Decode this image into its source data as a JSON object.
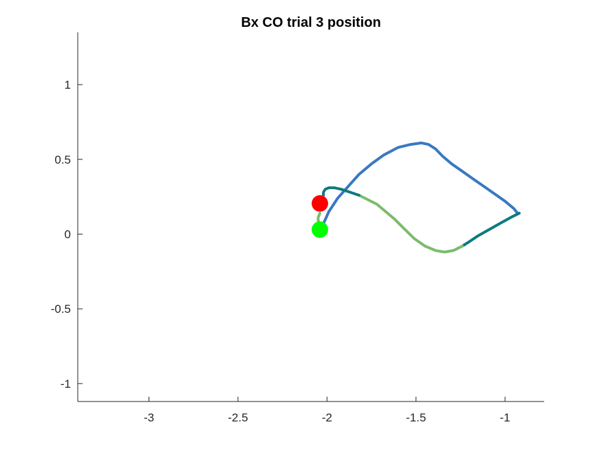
{
  "chart_data": {
    "type": "line",
    "title": "Bx  CO trial 3 position",
    "xlabel": "",
    "ylabel": "",
    "xlim": [
      -3.4,
      -0.78
    ],
    "ylim": [
      -1.12,
      1.35
    ],
    "x_ticks": [
      -3,
      -2.5,
      -2,
      -1.5,
      -1
    ],
    "x_tick_labels": [
      "-3",
      "-2.5",
      "-2",
      "-1.5",
      "-1"
    ],
    "y_ticks": [
      -1,
      -0.5,
      0,
      0.5,
      1
    ],
    "y_tick_labels": [
      "-1",
      "-0.5",
      "0",
      "0.5",
      "1"
    ],
    "grid": false,
    "legend": "none",
    "colors": {
      "outward": "#3A78C2",
      "hold": "#0E7A80",
      "return": "#7CBB6B",
      "start_marker": "#00FF00",
      "end_marker": "#FF0000"
    },
    "series": [
      {
        "color": "#3A78C2",
        "x": [
          -2.02,
          -1.99,
          -1.94,
          -1.88,
          -1.82,
          -1.75,
          -1.68,
          -1.6,
          -1.53,
          -1.47,
          -1.43,
          -1.39,
          -1.35,
          -1.3,
          -1.24,
          -1.18,
          -1.12,
          -1.06,
          -1.0,
          -0.95,
          -0.93
        ],
        "y": [
          0.07,
          0.15,
          0.24,
          0.32,
          0.4,
          0.47,
          0.53,
          0.58,
          0.6,
          0.61,
          0.6,
          0.57,
          0.52,
          0.47,
          0.42,
          0.37,
          0.32,
          0.27,
          0.22,
          0.17,
          0.14
        ]
      },
      {
        "color": "#0E7A80",
        "x": [
          -0.92,
          -0.97,
          -1.03,
          -1.09,
          -1.15,
          -1.2,
          -1.24
        ],
        "y": [
          0.14,
          0.11,
          0.07,
          0.03,
          -0.01,
          -0.05,
          -0.08
        ]
      },
      {
        "color": "#7CBB6B",
        "x": [
          -1.24,
          -1.29,
          -1.34,
          -1.39,
          -1.45,
          -1.51,
          -1.57,
          -1.62,
          -1.67,
          -1.72,
          -1.77,
          -1.82
        ],
        "y": [
          -0.08,
          -0.11,
          -0.12,
          -0.11,
          -0.08,
          -0.03,
          0.04,
          0.1,
          0.15,
          0.2,
          0.23,
          0.26
        ]
      },
      {
        "color": "#0E7A80",
        "x": [
          -1.82,
          -1.87,
          -1.92,
          -1.96,
          -1.99,
          -2.01,
          -2.02,
          -2.02
        ],
        "y": [
          0.26,
          0.28,
          0.3,
          0.31,
          0.31,
          0.3,
          0.28,
          0.26
        ]
      },
      {
        "color": "#7CBB6B",
        "x": [
          -2.04,
          -2.05,
          -2.05,
          -2.04
        ],
        "y": [
          0.14,
          0.11,
          0.09,
          0.07
        ]
      }
    ],
    "markers": [
      {
        "x": -2.04,
        "y": 0.205,
        "color": "#FF0000"
      },
      {
        "x": -2.04,
        "y": 0.03,
        "color": "#00FF00"
      }
    ]
  }
}
